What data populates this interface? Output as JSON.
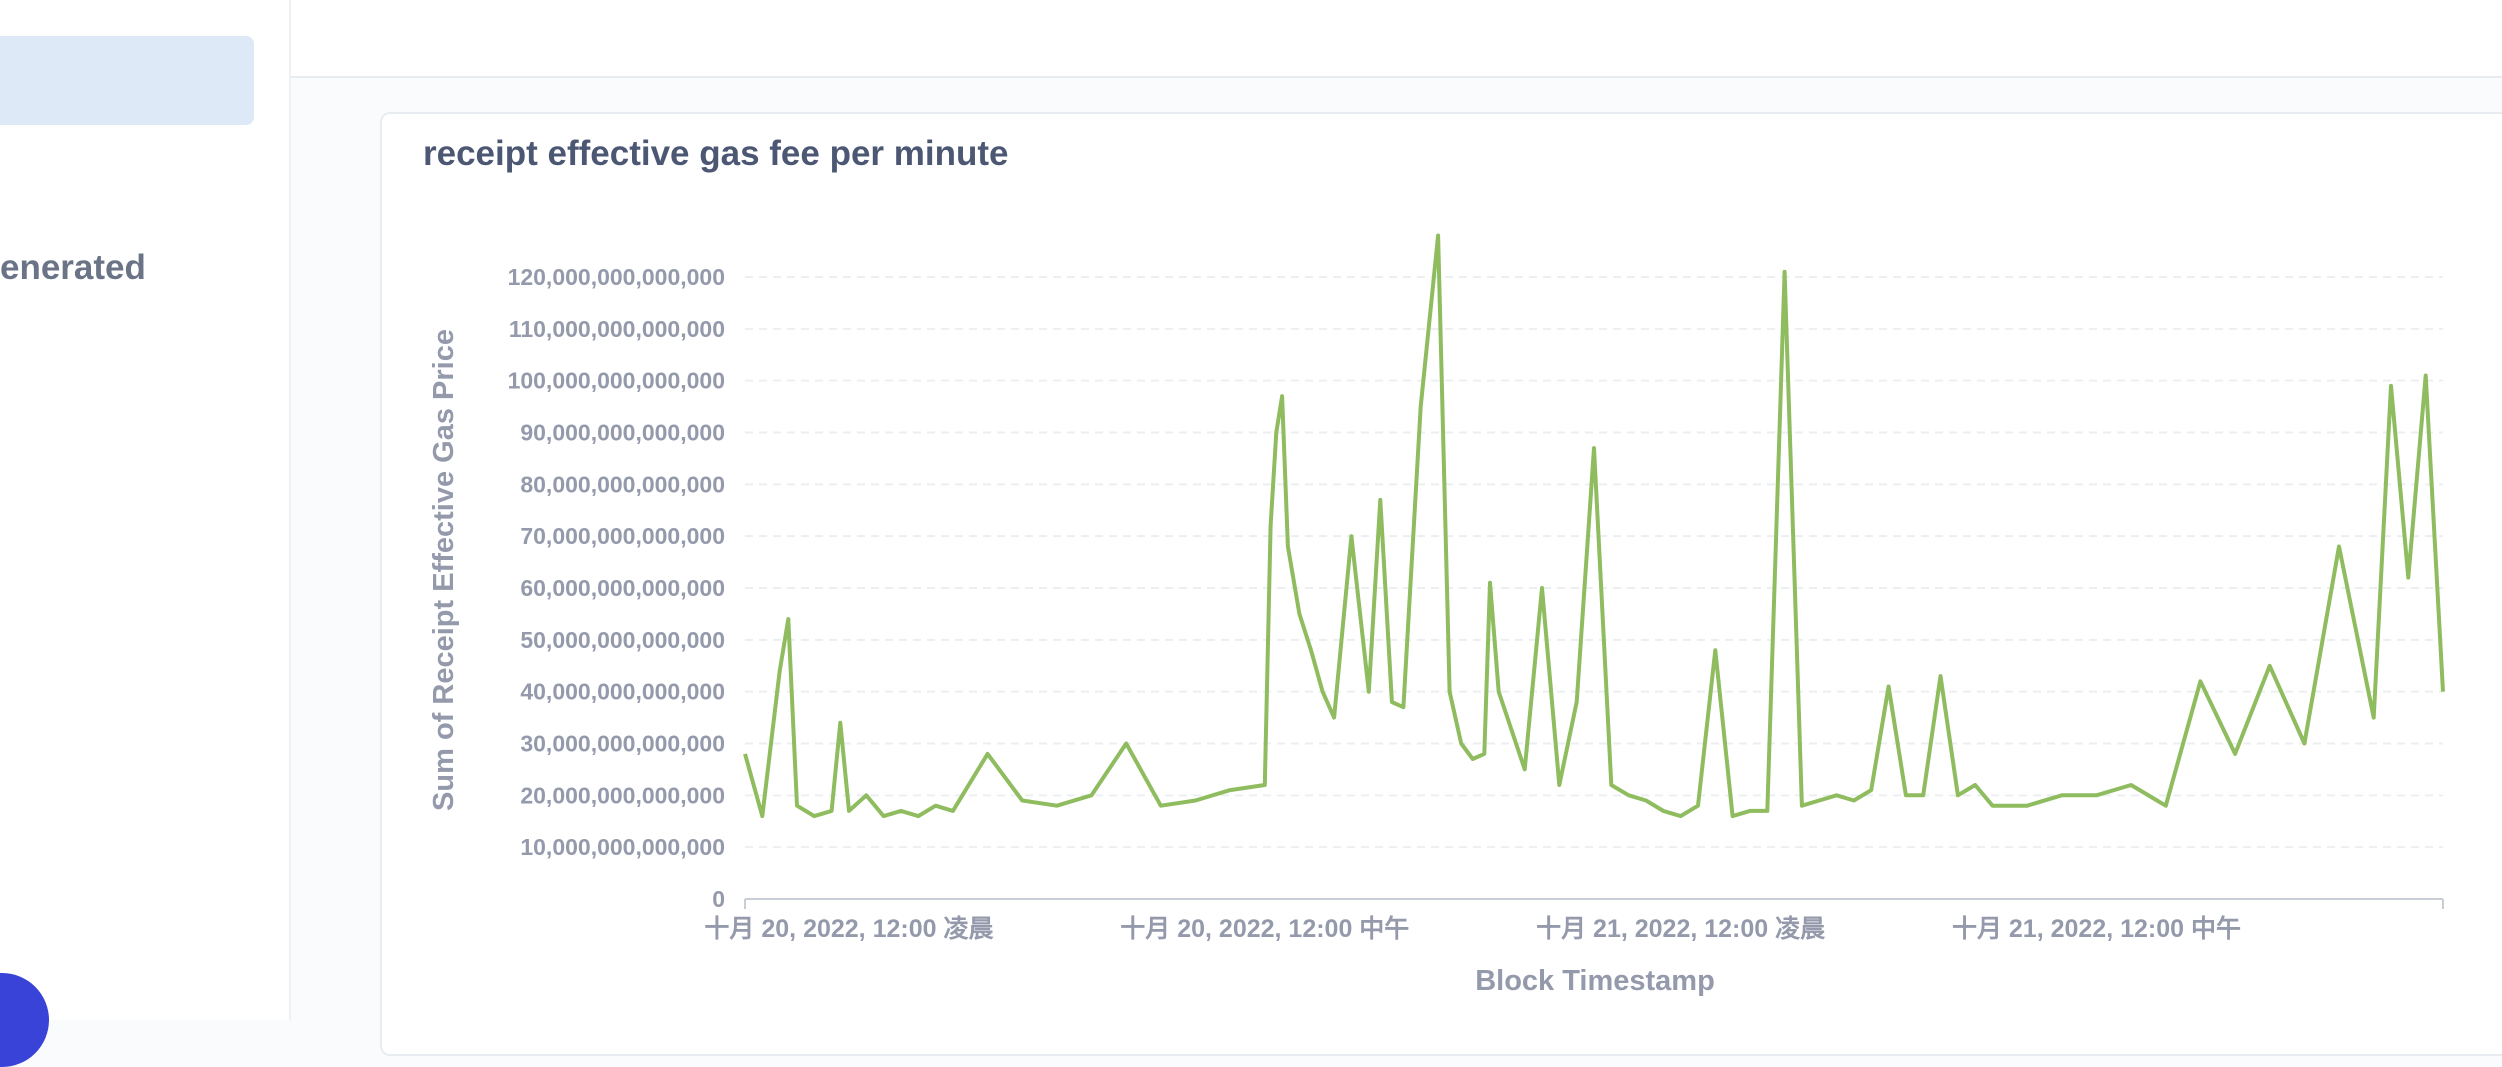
{
  "sidebar": {
    "partial_label": "enerated"
  },
  "card": {
    "title": "receipt effective gas fee per minute"
  },
  "colors": {
    "series": "#8fbc5f",
    "grid": "#eceff2",
    "axis": "#c9ced6",
    "tick_text": "#949aab",
    "sidebar_active": "#dde9f6",
    "fab": "#3a43d8"
  },
  "chart_data": {
    "type": "line",
    "title": "receipt effective gas fee per minute",
    "xlabel": "Block Timestamp",
    "ylabel": "Sum of Receipt Effective Gas Price",
    "ylim": [
      0,
      120000000000000
    ],
    "yticks": [
      {
        "value": 0,
        "label": "0"
      },
      {
        "value": 10000000000000,
        "label": "10,000,000,000,000"
      },
      {
        "value": 20000000000000,
        "label": "20,000,000,000,000"
      },
      {
        "value": 30000000000000,
        "label": "30,000,000,000,000"
      },
      {
        "value": 40000000000000,
        "label": "40,000,000,000,000"
      },
      {
        "value": 50000000000000,
        "label": "50,000,000,000,000"
      },
      {
        "value": 60000000000000,
        "label": "60,000,000,000,000"
      },
      {
        "value": 70000000000000,
        "label": "70,000,000,000,000"
      },
      {
        "value": 80000000000000,
        "label": "80,000,000,000,000"
      },
      {
        "value": 90000000000000,
        "label": "90,000,000,000,000"
      },
      {
        "value": 100000000000000,
        "label": "100,000,000,000,000"
      },
      {
        "value": 110000000000000,
        "label": "110,000,000,000,000"
      },
      {
        "value": 120000000000000,
        "label": "120,000,000,000,000"
      }
    ],
    "xlim": [
      "2022-10-19T21:00",
      "2022-10-21T22:00"
    ],
    "xticks": [
      {
        "value": "2022-10-20T00:00",
        "label": "十月 20, 2022, 12:00 凌晨"
      },
      {
        "value": "2022-10-20T12:00",
        "label": "十月 20, 2022, 12:00 中午"
      },
      {
        "value": "2022-10-21T00:00",
        "label": "十月 21, 2022, 12:00 凌晨"
      },
      {
        "value": "2022-10-21T12:00",
        "label": "十月 21, 2022, 12:00 中午"
      }
    ],
    "grid": true,
    "legend": "none",
    "series": [
      {
        "x": [
          "2022-10-19T21:00",
          "2022-10-19T21:30",
          "2022-10-19T22:00",
          "2022-10-19T22:15",
          "2022-10-19T22:30",
          "2022-10-19T23:00",
          "2022-10-19T23:30",
          "2022-10-19T23:45",
          "2022-10-20T00:00",
          "2022-10-20T00:30",
          "2022-10-20T01:00",
          "2022-10-20T01:30",
          "2022-10-20T02:00",
          "2022-10-20T02:30",
          "2022-10-20T03:00",
          "2022-10-20T04:00",
          "2022-10-20T05:00",
          "2022-10-20T06:00",
          "2022-10-20T07:00",
          "2022-10-20T08:00",
          "2022-10-20T09:00",
          "2022-10-20T10:00",
          "2022-10-20T11:00",
          "2022-10-20T12:00",
          "2022-10-20T12:10",
          "2022-10-20T12:20",
          "2022-10-20T12:30",
          "2022-10-20T12:40",
          "2022-10-20T13:00",
          "2022-10-20T13:20",
          "2022-10-20T13:40",
          "2022-10-20T14:00",
          "2022-10-20T14:30",
          "2022-10-20T15:00",
          "2022-10-20T15:20",
          "2022-10-20T15:40",
          "2022-10-20T16:00",
          "2022-10-20T16:30",
          "2022-10-20T17:00",
          "2022-10-20T17:20",
          "2022-10-20T17:40",
          "2022-10-20T18:00",
          "2022-10-20T18:20",
          "2022-10-20T18:30",
          "2022-10-20T18:45",
          "2022-10-20T19:00",
          "2022-10-20T19:30",
          "2022-10-20T20:00",
          "2022-10-20T20:30",
          "2022-10-20T21:00",
          "2022-10-20T21:30",
          "2022-10-20T22:00",
          "2022-10-20T22:30",
          "2022-10-20T23:00",
          "2022-10-20T23:30",
          "2022-10-21T00:00",
          "2022-10-21T00:30",
          "2022-10-21T01:00",
          "2022-10-21T01:30",
          "2022-10-21T02:00",
          "2022-10-21T02:30",
          "2022-10-21T03:00",
          "2022-10-21T03:30",
          "2022-10-21T04:00",
          "2022-10-21T04:30",
          "2022-10-21T05:00",
          "2022-10-21T05:30",
          "2022-10-21T06:00",
          "2022-10-21T06:30",
          "2022-10-21T07:00",
          "2022-10-21T07:30",
          "2022-10-21T08:00",
          "2022-10-21T08:30",
          "2022-10-21T09:00",
          "2022-10-21T10:00",
          "2022-10-21T11:00",
          "2022-10-21T12:00",
          "2022-10-21T13:00",
          "2022-10-21T14:00",
          "2022-10-21T15:00",
          "2022-10-21T16:00",
          "2022-10-21T17:00",
          "2022-10-21T18:00",
          "2022-10-21T19:00",
          "2022-10-21T20:00",
          "2022-10-21T20:30",
          "2022-10-21T21:00",
          "2022-10-21T21:30",
          "2022-10-21T22:00"
        ],
        "y": [
          28000000000000.0,
          16000000000000.0,
          44000000000000.0,
          54000000000000.0,
          18000000000000.0,
          16000000000000.0,
          17000000000000.0,
          34000000000000.0,
          17000000000000.0,
          20000000000000.0,
          16000000000000.0,
          17000000000000.0,
          16000000000000.0,
          18000000000000.0,
          17000000000000.0,
          28000000000000.0,
          19000000000000.0,
          18000000000000.0,
          20000000000000.0,
          30000000000000.0,
          18000000000000.0,
          19000000000000.0,
          21000000000000.0,
          22000000000000.0,
          72000000000000.0,
          90000000000000.0,
          97000000000000.0,
          68000000000000.0,
          55000000000000.0,
          48000000000000.0,
          40000000000000.0,
          35000000000000.0,
          70000000000000.0,
          40000000000000.0,
          77000000000000.0,
          38000000000000.0,
          37000000000000.0,
          95000000000000.0,
          128000000000000.0,
          40000000000000.0,
          30000000000000.0,
          27000000000000.0,
          28000000000000.0,
          61000000000000.0,
          40000000000000.0,
          35000000000000.0,
          25000000000000.0,
          60000000000000.0,
          22000000000000.0,
          38000000000000.0,
          87000000000000.0,
          22000000000000.0,
          20000000000000.0,
          19000000000000.0,
          17000000000000.0,
          16000000000000.0,
          18000000000000.0,
          48000000000000.0,
          16000000000000.0,
          17000000000000.0,
          17000000000000.0,
          121000000000000.0,
          18000000000000.0,
          19000000000000.0,
          20000000000000.0,
          19000000000000.0,
          21000000000000.0,
          41000000000000.0,
          20000000000000.0,
          20000000000000.0,
          43000000000000.0,
          20000000000000.0,
          22000000000000.0,
          18000000000000.0,
          18000000000000.0,
          20000000000000.0,
          20000000000000.0,
          22000000000000.0,
          18000000000000.0,
          42000000000000.0,
          28000000000000.0,
          45000000000000.0,
          30000000000000.0,
          68000000000000.0,
          35000000000000.0,
          99000000000000.0,
          62000000000000.0,
          101000000000000.0,
          40000000000000.0
        ]
      }
    ]
  }
}
